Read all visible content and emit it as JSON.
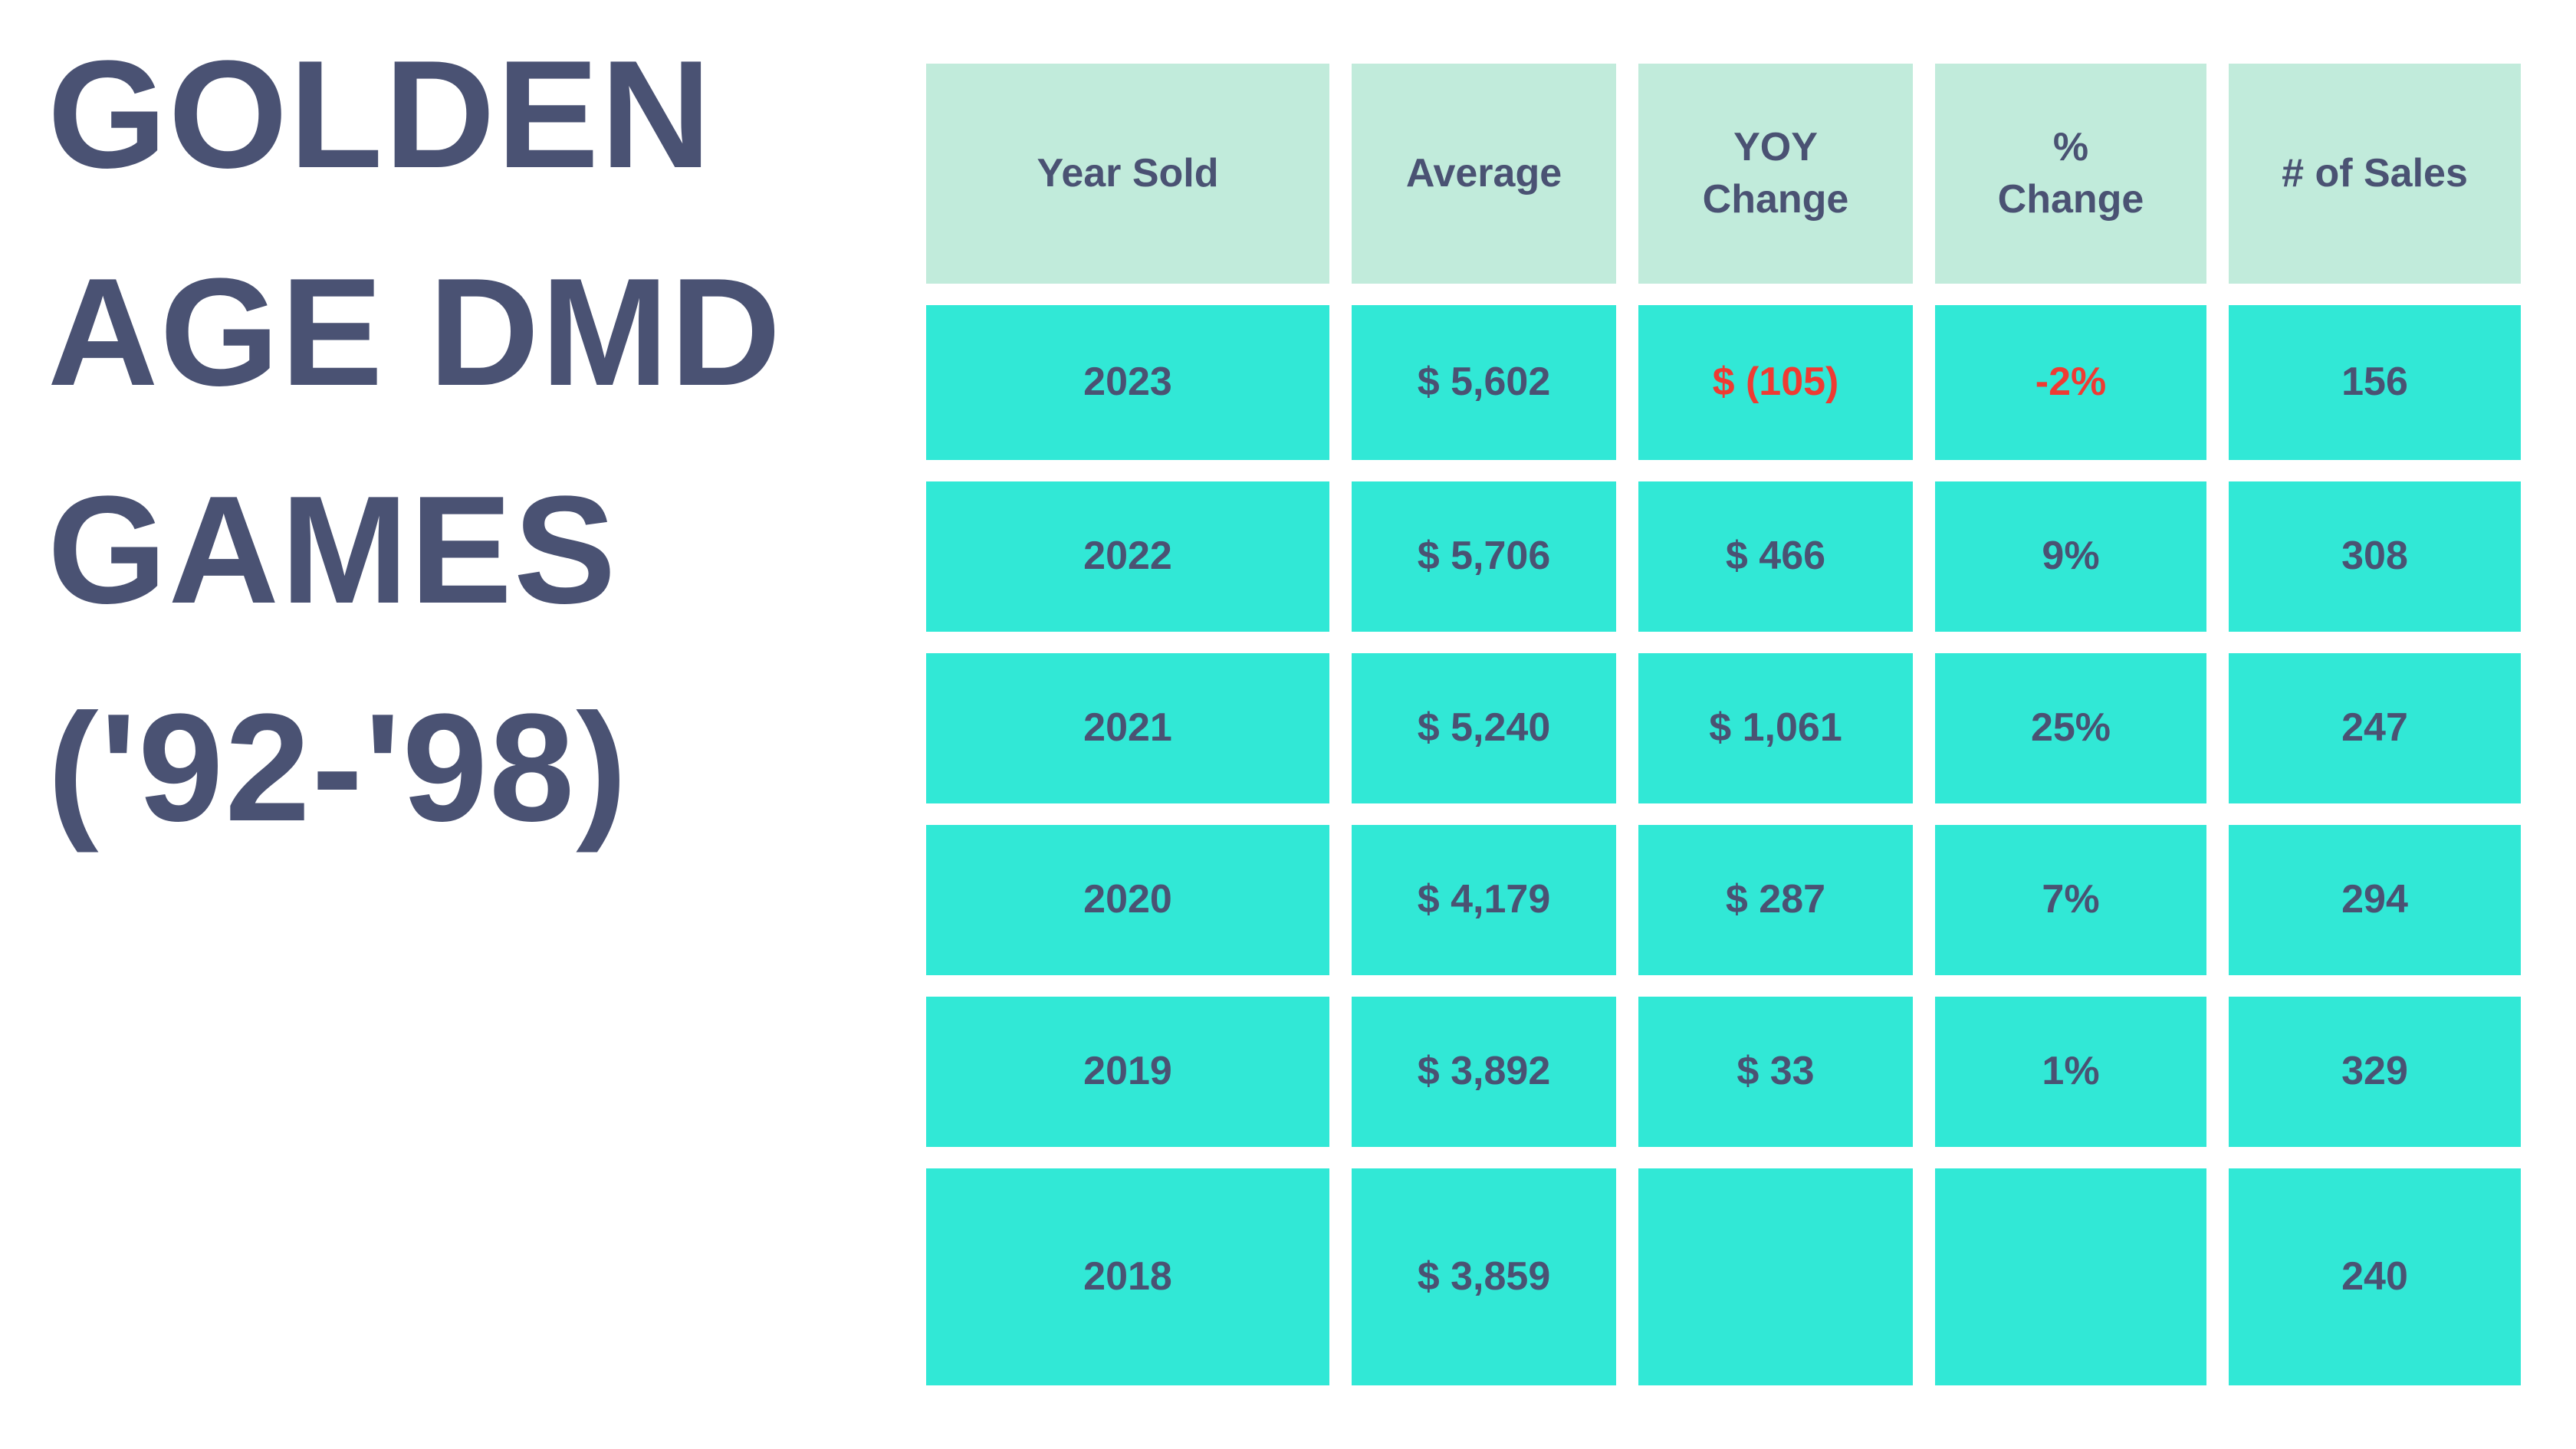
{
  "title": "GOLDEN\nAGE DMD\nGAMES\n('92-'98)",
  "colors": {
    "text": "#4a5273",
    "header_bg": "#c1ebdb",
    "cell_bg": "#31e8d6",
    "negative_text": "#ef3b33",
    "background": "#ffffff"
  },
  "table": {
    "headers": [
      "Year Sold",
      "Average",
      "YOY\nChange",
      "%\nChange",
      "# of Sales"
    ],
    "rows": [
      [
        "2023",
        "$ 5,602",
        "$ (105)",
        "-2%",
        "156"
      ],
      [
        "2022",
        "$ 5,706",
        "$ 466",
        "9%",
        "308"
      ],
      [
        "2021",
        "$ 5,240",
        "$ 1,061",
        "25%",
        "247"
      ],
      [
        "2020",
        "$ 4,179",
        "$ 287",
        "7%",
        "294"
      ],
      [
        "2019",
        "$ 3,892",
        "$ 33",
        "1%",
        "329"
      ],
      [
        "2018",
        "$ 3,859",
        "",
        "",
        "240"
      ]
    ]
  },
  "chart_data": {
    "type": "table",
    "title": "GOLDEN AGE DMD GAMES ('92-'98)",
    "columns": [
      "Year Sold",
      "Average",
      "YOY Change",
      "% Change",
      "# of Sales"
    ],
    "rows": [
      {
        "year": 2023,
        "average": 5602,
        "yoy_change": -105,
        "pct_change": -2,
        "num_sales": 156
      },
      {
        "year": 2022,
        "average": 5706,
        "yoy_change": 466,
        "pct_change": 9,
        "num_sales": 308
      },
      {
        "year": 2021,
        "average": 5240,
        "yoy_change": 1061,
        "pct_change": 25,
        "num_sales": 247
      },
      {
        "year": 2020,
        "average": 4179,
        "yoy_change": 287,
        "pct_change": 7,
        "num_sales": 294
      },
      {
        "year": 2019,
        "average": 3892,
        "yoy_change": 33,
        "pct_change": 1,
        "num_sales": 329
      },
      {
        "year": 2018,
        "average": 3859,
        "yoy_change": null,
        "pct_change": null,
        "num_sales": 240
      }
    ],
    "notes": "Negative YOY values shown in red; 2018 has no YOY or % change values"
  }
}
